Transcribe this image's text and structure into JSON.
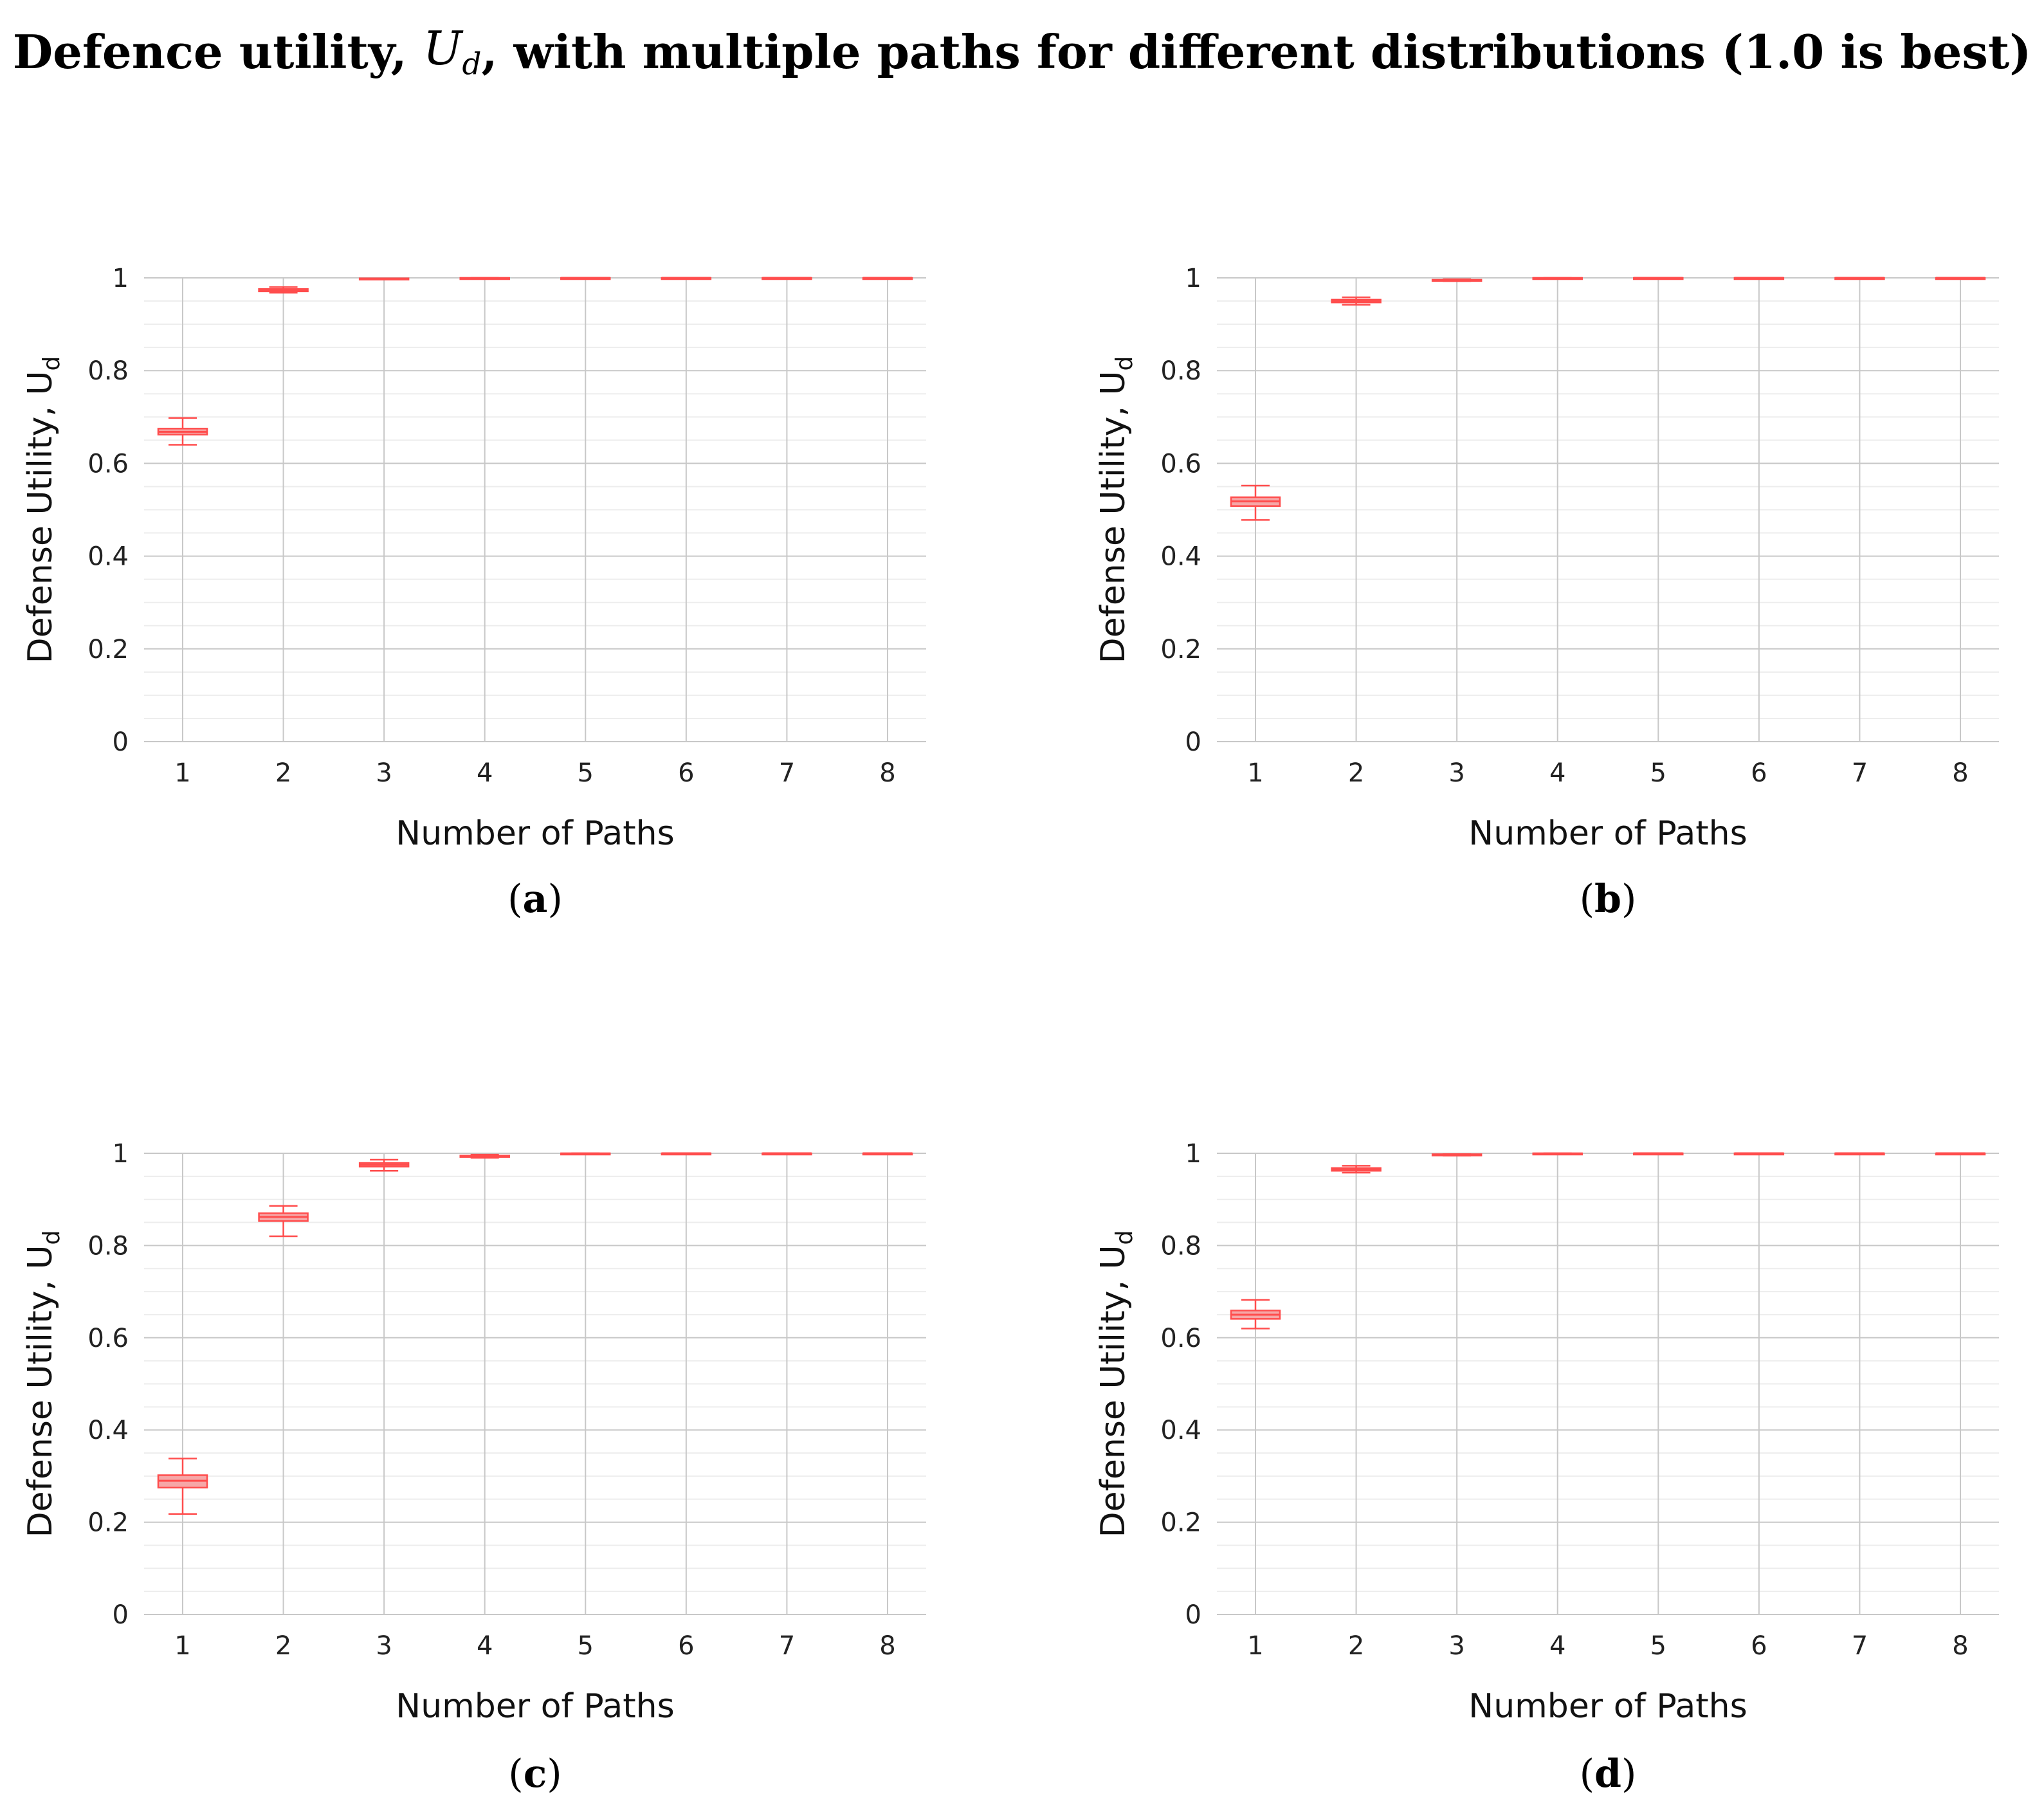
{
  "figure": {
    "title_prefix": "Defence utility, ",
    "title_symbol": "U",
    "title_symbol_sub": "d",
    "title_suffix": ", with multiple paths for different distributions (1.0 is best)",
    "box_color": "#ff4d4d",
    "box_fill": "#f6a7a7",
    "grid_major_color": "#c8c8c8",
    "grid_minor_color": "#ededed"
  },
  "chart_data": [
    {
      "type": "box",
      "caption_letter": "a",
      "title": "",
      "xlabel": "Number of Paths",
      "ylabel_main": "Defense Utility, U",
      "ylabel_sub": "d",
      "categories": [
        "1",
        "2",
        "3",
        "4",
        "5",
        "6",
        "7",
        "8"
      ],
      "ylim": [
        0,
        1
      ],
      "yticks": [
        0,
        0.2,
        0.4,
        0.6,
        0.8,
        1
      ],
      "ytick_labels": [
        "0",
        "0.2",
        "0.4",
        "0.6",
        "0.8",
        "1"
      ],
      "boxes": [
        {
          "min": 0.64,
          "q1": 0.662,
          "median": 0.668,
          "q3": 0.675,
          "max": 0.698
        },
        {
          "min": 0.968,
          "q1": 0.971,
          "median": 0.973,
          "q3": 0.976,
          "max": 0.98
        },
        {
          "min": 0.997,
          "q1": 0.998,
          "median": 0.998,
          "q3": 0.999,
          "max": 0.999
        },
        {
          "min": 0.999,
          "q1": 0.9995,
          "median": 0.9995,
          "q3": 1,
          "max": 1
        },
        {
          "min": 1,
          "q1": 1,
          "median": 1,
          "q3": 1,
          "max": 1
        },
        {
          "min": 1,
          "q1": 1,
          "median": 1,
          "q3": 1,
          "max": 1
        },
        {
          "min": 1,
          "q1": 1,
          "median": 1,
          "q3": 1,
          "max": 1
        },
        {
          "min": 1,
          "q1": 1,
          "median": 1,
          "q3": 1,
          "max": 1
        }
      ]
    },
    {
      "type": "box",
      "caption_letter": "b",
      "title": "",
      "xlabel": "Number of Paths",
      "ylabel_main": "Defense Utility, U",
      "ylabel_sub": "d",
      "categories": [
        "1",
        "2",
        "3",
        "4",
        "5",
        "6",
        "7",
        "8"
      ],
      "ylim": [
        0,
        1
      ],
      "yticks": [
        0,
        0.2,
        0.4,
        0.6,
        0.8,
        1
      ],
      "ytick_labels": [
        "0",
        "0.2",
        "0.4",
        "0.6",
        "0.8",
        "1"
      ],
      "boxes": [
        {
          "min": 0.478,
          "q1": 0.508,
          "median": 0.518,
          "q3": 0.527,
          "max": 0.552
        },
        {
          "min": 0.942,
          "q1": 0.947,
          "median": 0.95,
          "q3": 0.953,
          "max": 0.958
        },
        {
          "min": 0.993,
          "q1": 0.994,
          "median": 0.995,
          "q3": 0.996,
          "max": 0.997
        },
        {
          "min": 0.999,
          "q1": 0.9995,
          "median": 0.9995,
          "q3": 1,
          "max": 1
        },
        {
          "min": 1,
          "q1": 1,
          "median": 1,
          "q3": 1,
          "max": 1
        },
        {
          "min": 1,
          "q1": 1,
          "median": 1,
          "q3": 1,
          "max": 1
        },
        {
          "min": 1,
          "q1": 1,
          "median": 1,
          "q3": 1,
          "max": 1
        },
        {
          "min": 1,
          "q1": 1,
          "median": 1,
          "q3": 1,
          "max": 1
        }
      ]
    },
    {
      "type": "box",
      "caption_letter": "c",
      "title": "",
      "xlabel": "Number of Paths",
      "ylabel_main": "Defense Utility, U",
      "ylabel_sub": "d",
      "categories": [
        "1",
        "2",
        "3",
        "4",
        "5",
        "6",
        "7",
        "8"
      ],
      "ylim": [
        0,
        1
      ],
      "yticks": [
        0,
        0.2,
        0.4,
        0.6,
        0.8,
        1
      ],
      "ytick_labels": [
        "0",
        "0.2",
        "0.4",
        "0.6",
        "0.8",
        "1"
      ],
      "boxes": [
        {
          "min": 0.218,
          "q1": 0.275,
          "median": 0.29,
          "q3": 0.302,
          "max": 0.338
        },
        {
          "min": 0.82,
          "q1": 0.853,
          "median": 0.862,
          "q3": 0.87,
          "max": 0.886
        },
        {
          "min": 0.962,
          "q1": 0.971,
          "median": 0.975,
          "q3": 0.979,
          "max": 0.986
        },
        {
          "min": 0.99,
          "q1": 0.992,
          "median": 0.994,
          "q3": 0.995,
          "max": 0.997
        },
        {
          "min": 0.999,
          "q1": 0.9995,
          "median": 0.9995,
          "q3": 1,
          "max": 1
        },
        {
          "min": 1,
          "q1": 1,
          "median": 1,
          "q3": 1,
          "max": 1
        },
        {
          "min": 1,
          "q1": 1,
          "median": 1,
          "q3": 1,
          "max": 1
        },
        {
          "min": 1,
          "q1": 1,
          "median": 1,
          "q3": 1,
          "max": 1
        }
      ]
    },
    {
      "type": "box",
      "caption_letter": "d",
      "title": "",
      "xlabel": "Number of Paths",
      "ylabel_main": "Defense Utility, U",
      "ylabel_sub": "d",
      "categories": [
        "1",
        "2",
        "3",
        "4",
        "5",
        "6",
        "7",
        "8"
      ],
      "ylim": [
        0,
        1
      ],
      "yticks": [
        0,
        0.2,
        0.4,
        0.6,
        0.8,
        1
      ],
      "ytick_labels": [
        "0",
        "0.2",
        "0.4",
        "0.6",
        "0.8",
        "1"
      ],
      "boxes": [
        {
          "min": 0.62,
          "q1": 0.641,
          "median": 0.65,
          "q3": 0.659,
          "max": 0.682
        },
        {
          "min": 0.958,
          "q1": 0.962,
          "median": 0.965,
          "q3": 0.968,
          "max": 0.973
        },
        {
          "min": 0.995,
          "q1": 0.996,
          "median": 0.997,
          "q3": 0.998,
          "max": 0.998
        },
        {
          "min": 0.999,
          "q1": 0.9995,
          "median": 0.9995,
          "q3": 1,
          "max": 1
        },
        {
          "min": 1,
          "q1": 1,
          "median": 1,
          "q3": 1,
          "max": 1
        },
        {
          "min": 1,
          "q1": 1,
          "median": 1,
          "q3": 1,
          "max": 1
        },
        {
          "min": 1,
          "q1": 1,
          "median": 1,
          "q3": 1,
          "max": 1
        },
        {
          "min": 1,
          "q1": 1,
          "median": 1,
          "q3": 1,
          "max": 1
        }
      ]
    }
  ]
}
